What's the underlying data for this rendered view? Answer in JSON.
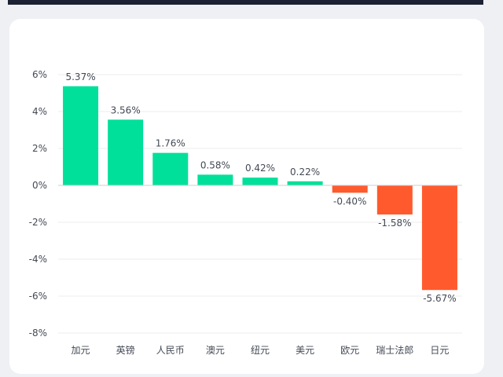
{
  "chart_data": {
    "type": "bar",
    "categories": [
      "加元",
      "英镑",
      "人民币",
      "澳元",
      "纽元",
      "美元",
      "欧元",
      "瑞士法郎",
      "日元"
    ],
    "values": [
      5.37,
      3.56,
      1.76,
      0.58,
      0.42,
      0.22,
      -0.4,
      -1.58,
      -5.67
    ],
    "data_labels": [
      "5.37%",
      "3.56%",
      "1.76%",
      "0.58%",
      "0.42%",
      "0.22%",
      "-0.40%",
      "-1.58%",
      "-5.67%"
    ],
    "title": "",
    "xlabel": "",
    "ylabel": "",
    "ylim": [
      -8,
      6
    ],
    "yticks": [
      6,
      4,
      2,
      0,
      -2,
      -4,
      -6,
      -8
    ],
    "ytick_labels": [
      "6%",
      "4%",
      "2%",
      "0%",
      "-2%",
      "-4%",
      "-6%",
      "-8%"
    ],
    "grid": true,
    "colors": {
      "positive": "#00e09a",
      "negative": "#ff5a2e",
      "grid": "#ececec",
      "zero_line": "#cfcfcf"
    }
  }
}
